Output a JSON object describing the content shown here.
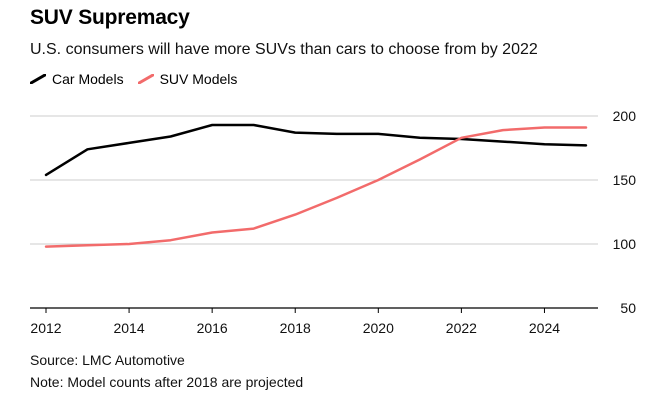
{
  "header": {
    "title": "SUV Supremacy",
    "subtitle": "U.S. consumers will have more SUVs than cars to choose from by 2022"
  },
  "footer": {
    "source": "Source: LMC Automotive",
    "note": "Note: Model counts after 2018 are projected"
  },
  "chart_data": {
    "type": "line",
    "x": [
      2012,
      2013,
      2014,
      2015,
      2016,
      2017,
      2018,
      2019,
      2020,
      2021,
      2022,
      2023,
      2024,
      2025
    ],
    "series": [
      {
        "name": "Car Models",
        "color": "#000000",
        "values": [
          154,
          174,
          179,
          184,
          193,
          193,
          187,
          186,
          186,
          183,
          182,
          180,
          178,
          177
        ]
      },
      {
        "name": "SUV Models",
        "color": "#f26b6b",
        "values": [
          98,
          99,
          100,
          103,
          109,
          112,
          123,
          136,
          150,
          166,
          183,
          189,
          191,
          191
        ]
      }
    ],
    "xticks": [
      "2012",
      "2014",
      "2016",
      "2018",
      "2020",
      "2022",
      "2024"
    ],
    "yticks": [
      "200",
      "150",
      "100",
      "50"
    ],
    "xlim": [
      2012,
      2025
    ],
    "ylim": [
      50,
      200
    ],
    "grid": true,
    "legend_position": "top-left",
    "grid_color": "#cccccc"
  }
}
